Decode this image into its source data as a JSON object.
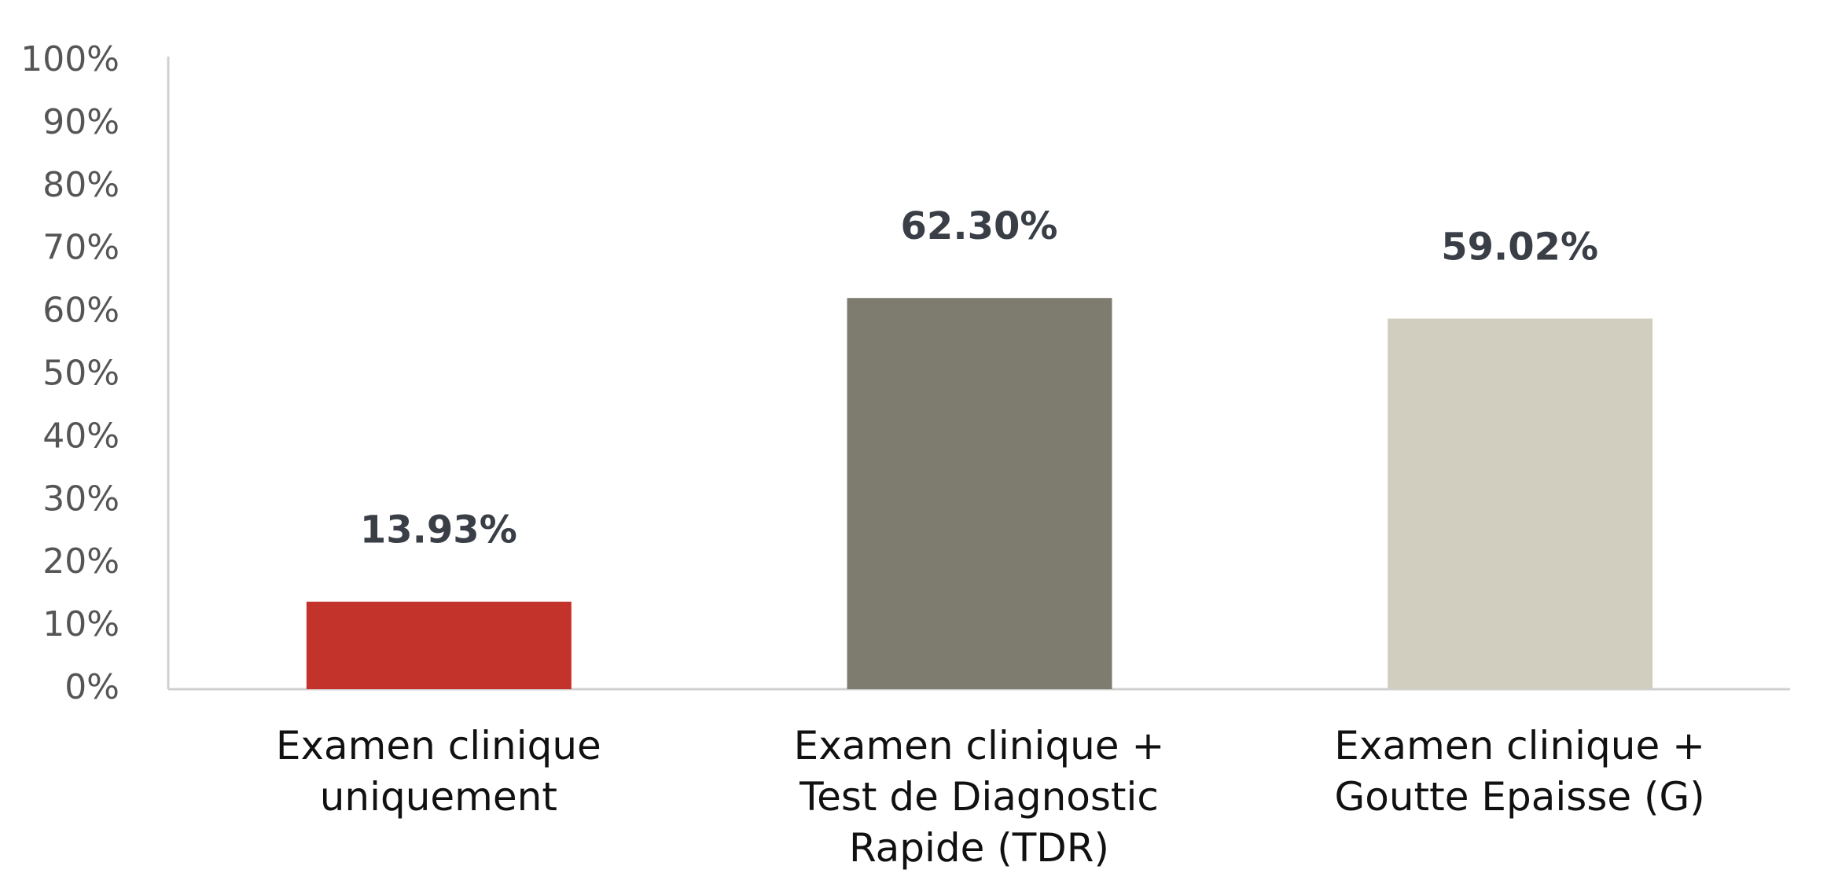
{
  "chart_data": {
    "type": "bar",
    "categories": [
      "Examen clinique\nuniquement",
      "Examen clinique +\nTest de Diagnostic\nRapide (TDR)",
      "Examen clinique +\nGoutte Epaisse (G)"
    ],
    "values": [
      13.93,
      62.3,
      59.02
    ],
    "value_labels": [
      "13.93%",
      "62.30%",
      "59.02%"
    ],
    "colors": [
      "#c4332b",
      "#7e7b6f",
      "#d1cec0"
    ],
    "ylim": [
      0,
      100
    ],
    "yticks": [
      {
        "value": 0,
        "label": "0%"
      },
      {
        "value": 10,
        "label": "10%"
      },
      {
        "value": 20,
        "label": "20%"
      },
      {
        "value": 30,
        "label": "30%"
      },
      {
        "value": 40,
        "label": "40%"
      },
      {
        "value": 50,
        "label": "50%"
      },
      {
        "value": 60,
        "label": "60%"
      },
      {
        "value": 70,
        "label": "70%"
      },
      {
        "value": 80,
        "label": "80%"
      },
      {
        "value": 90,
        "label": "90%"
      },
      {
        "value": 100,
        "label": "100%"
      }
    ],
    "grid": false
  }
}
